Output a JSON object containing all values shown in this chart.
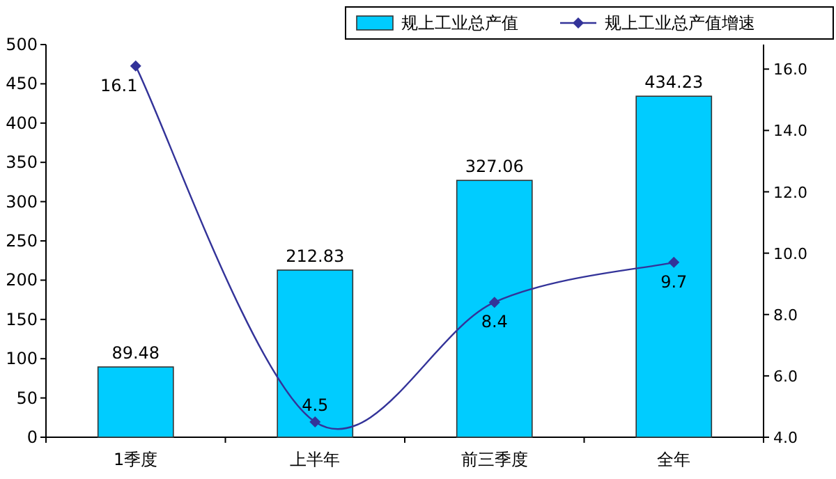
{
  "chart_data": {
    "type": "bar",
    "categories": [
      "1季度",
      "上半年",
      "前三季度",
      "全年"
    ],
    "series": [
      {
        "name": "规上工业总产值",
        "color": "#00ccff",
        "values": [
          89.48,
          212.83,
          327.06,
          434.23
        ]
      },
      {
        "name": "规上工业总产值增速",
        "type": "line",
        "axis": "y2",
        "color": "#333399",
        "marker": "diamond",
        "values": [
          16.1,
          4.5,
          8.4,
          9.7
        ]
      }
    ],
    "ylim": [
      0,
      500
    ],
    "yticks": [
      0,
      50,
      100,
      150,
      200,
      250,
      300,
      350,
      400,
      450,
      500
    ],
    "y2lim": [
      4,
      16.8
    ],
    "y2ticks": [
      {
        "value": 4,
        "label": "4.0"
      },
      {
        "value": 6,
        "label": "6.0"
      },
      {
        "value": 8,
        "label": "8.0"
      },
      {
        "value": 10,
        "label": "10.0"
      },
      {
        "value": 12,
        "label": "12.0"
      },
      {
        "value": 14,
        "label": "14.0"
      },
      {
        "value": 16,
        "label": "16.0"
      }
    ],
    "data_labels": true,
    "legend": "top right",
    "grid": false
  }
}
